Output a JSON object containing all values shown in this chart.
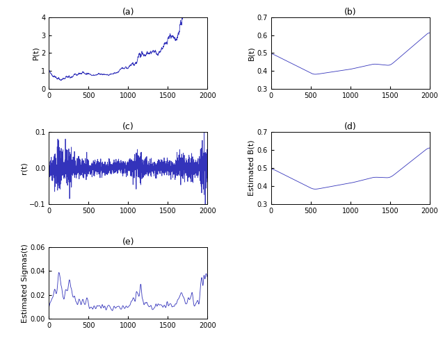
{
  "T": 2000,
  "seed": 42,
  "line_color": "#3333bb",
  "line_width": 0.6,
  "bg_color": "white",
  "titles": [
    "(a)",
    "(b)",
    "(c)",
    "(d)",
    "(e)"
  ],
  "ylabels": [
    "P(t)",
    "B(t)",
    "r(t)",
    "Estimated B(t)",
    "Estimated Sigmas(t)"
  ],
  "xlim": [
    0,
    2000
  ],
  "P_ylim": [
    0,
    4
  ],
  "B_ylim": [
    0.3,
    0.7
  ],
  "r_ylim": [
    -0.1,
    0.1
  ],
  "estB_ylim": [
    0.3,
    0.7
  ],
  "estSig_ylim": [
    0,
    0.06
  ],
  "P_yticks": [
    0,
    1,
    2,
    3,
    4
  ],
  "B_yticks": [
    0.3,
    0.4,
    0.5,
    0.6,
    0.7
  ],
  "r_yticks": [
    -0.1,
    0,
    0.1
  ],
  "estB_yticks": [
    0.3,
    0.4,
    0.5,
    0.6,
    0.7
  ],
  "estSig_yticks": [
    0,
    0.02,
    0.04,
    0.06
  ],
  "xticks": [
    0,
    500,
    1000,
    1500,
    2000
  ]
}
